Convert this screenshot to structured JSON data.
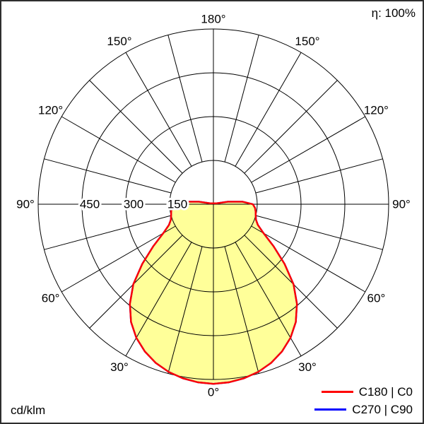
{
  "corner": {
    "efficiency": "η: 100%",
    "unit": "cd/klm"
  },
  "legend": {
    "items": [
      {
        "label": "C180 | C0",
        "color": "#ff0000"
      },
      {
        "label": "C270 | C90",
        "color": "#0000ff"
      }
    ]
  },
  "chart_data": {
    "type": "polar",
    "unit": "cd/klm",
    "efficiency": "100%",
    "ring_values": [
      150,
      300,
      450,
      600
    ],
    "ring_labels": [
      "150",
      "300",
      "450"
    ],
    "angle_ticks_deg": [
      0,
      30,
      60,
      90,
      120,
      150,
      180
    ],
    "grid_step_deg": 15,
    "legend_position": "bottom-right",
    "series": [
      {
        "name": "C180 | C0",
        "color": "#ff0000",
        "fill": "#ffff99",
        "symmetric": true,
        "gamma_deg": [
          0,
          5,
          10,
          15,
          20,
          25,
          30,
          35,
          40,
          45,
          50,
          55,
          60,
          65,
          70,
          75,
          80,
          85,
          90,
          95,
          100,
          105
        ],
        "values": [
          615,
          612,
          605,
          594,
          578,
          556,
          528,
          492,
          445,
          388,
          318,
          252,
          198,
          168,
          155,
          150,
          147,
          143,
          135,
          100,
          50,
          12
        ]
      },
      {
        "name": "C270 | C90",
        "color": "#0000ff",
        "fill": "none",
        "symmetric": true,
        "gamma_deg": [
          0,
          5,
          10,
          15,
          20,
          25,
          30,
          35,
          40,
          45,
          50,
          55,
          60,
          65,
          70,
          75,
          80,
          85,
          90,
          95,
          100,
          105
        ],
        "values": [
          615,
          612,
          605,
          594,
          578,
          556,
          528,
          492,
          445,
          388,
          318,
          252,
          198,
          168,
          155,
          150,
          147,
          143,
          135,
          100,
          50,
          12
        ]
      }
    ]
  }
}
